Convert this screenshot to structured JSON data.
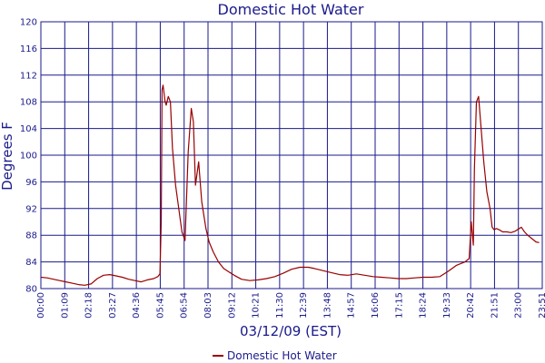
{
  "chart_data": {
    "type": "line",
    "title": "Domestic Hot Water",
    "xlabel": "03/12/09 (EST)",
    "ylabel": "Degrees F",
    "ylim": [
      80,
      120
    ],
    "yticks": [
      80,
      84,
      88,
      92,
      96,
      100,
      104,
      108,
      112,
      116,
      120
    ],
    "xticks": [
      "00:00",
      "01:09",
      "02:18",
      "03:27",
      "04:36",
      "05:45",
      "06:54",
      "08:03",
      "09:12",
      "10:21",
      "11:30",
      "12:39",
      "13:48",
      "14:57",
      "16:06",
      "17:15",
      "18:24",
      "19:33",
      "20:42",
      "21:51",
      "23:00",
      "23:51"
    ],
    "grid": true,
    "legend_position": "bottom-center",
    "colors": {
      "series": "#990000",
      "axis": "#1a1a8c"
    },
    "series": [
      {
        "name": "Domestic Hot Water",
        "x": [
          0,
          0.3,
          0.6,
          0.9,
          1.2,
          1.5,
          1.8,
          2.1,
          2.4,
          2.7,
          3.0,
          3.3,
          3.6,
          3.9,
          4.2,
          4.5,
          4.8,
          5.1,
          5.4,
          5.6,
          5.7,
          5.76,
          5.8,
          5.85,
          5.95,
          6.0,
          6.1,
          6.2,
          6.3,
          6.45,
          6.6,
          6.75,
          6.9,
          7.05,
          7.2,
          7.3,
          7.4,
          7.55,
          7.7,
          7.8,
          7.9,
          8.05,
          8.25,
          8.5,
          8.75,
          9.0,
          9.25,
          9.6,
          10.0,
          10.4,
          10.8,
          11.2,
          11.6,
          12.0,
          12.4,
          12.8,
          13.1,
          13.5,
          13.9,
          14.3,
          14.7,
          15.1,
          15.5,
          15.9,
          16.3,
          16.7,
          17.1,
          17.5,
          17.9,
          18.3,
          18.7,
          19.1,
          19.5,
          19.9,
          20.3,
          20.5,
          20.6,
          20.7,
          20.75,
          20.85,
          20.95,
          21.05,
          21.2,
          21.35,
          21.5,
          21.6,
          21.7,
          21.8,
          21.95,
          22.1,
          22.3,
          22.5,
          22.7,
          22.9,
          23.0,
          23.15,
          23.3,
          23.5,
          23.7,
          23.85
        ],
        "values": [
          81.7,
          81.6,
          81.4,
          81.2,
          81.0,
          80.8,
          80.6,
          80.5,
          80.7,
          81.5,
          82.0,
          82.1,
          81.9,
          81.7,
          81.4,
          81.2,
          81.0,
          81.3,
          81.5,
          81.8,
          82.2,
          90.0,
          109.8,
          110.5,
          108.0,
          107.5,
          108.8,
          108.0,
          101.0,
          95.5,
          92.0,
          88.5,
          87.2,
          100.5,
          107.0,
          105.0,
          95.5,
          99.0,
          93.0,
          91.0,
          89.0,
          87.0,
          85.5,
          84.0,
          83.0,
          82.5,
          82.0,
          81.4,
          81.2,
          81.3,
          81.5,
          81.8,
          82.3,
          82.9,
          83.2,
          83.2,
          83.0,
          82.7,
          82.4,
          82.1,
          82.0,
          82.2,
          82.0,
          81.8,
          81.7,
          81.6,
          81.5,
          81.5,
          81.6,
          81.7,
          81.7,
          81.8,
          82.6,
          83.5,
          84.0,
          84.5,
          90.0,
          86.5,
          98.0,
          108.0,
          108.8,
          105.0,
          99.0,
          94.5,
          92.0,
          89.2,
          88.8,
          89.0,
          88.8,
          88.5,
          88.5,
          88.4,
          88.6,
          89.0,
          89.2,
          88.5,
          88.0,
          87.5,
          87.0,
          86.9
        ]
      }
    ]
  }
}
